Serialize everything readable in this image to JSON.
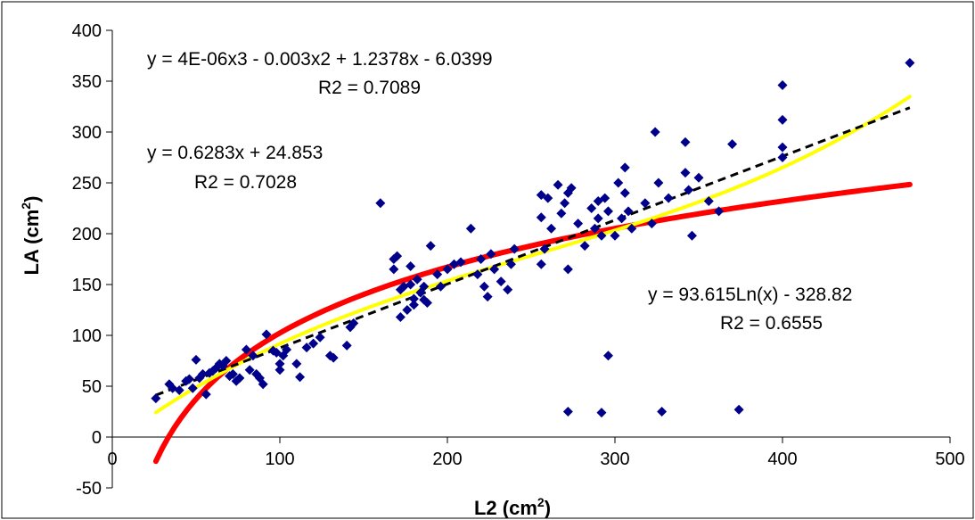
{
  "chart_data": {
    "type": "scatter",
    "xlabel_main": "L2 (cm",
    "xlabel_sup": "2",
    "xlabel_end": ")",
    "ylabel_main": "LA (cm",
    "ylabel_sup": "2",
    "ylabel_end": ")",
    "xlim": [
      0,
      500
    ],
    "ylim": [
      -50,
      400
    ],
    "xticks": [
      "0",
      "100",
      "200",
      "300",
      "400",
      "500"
    ],
    "yticks": [
      "-50",
      "0",
      "50",
      "100",
      "150",
      "200",
      "250",
      "300",
      "350",
      "400"
    ],
    "grid": false,
    "colors": {
      "points": "#00008B",
      "poly_trend": "#FFFF00",
      "linear_trend": "#000000",
      "log_trend": "#FF0000"
    },
    "series": [
      {
        "type": "scatter",
        "x": [
          26,
          34,
          36,
          40,
          44,
          46,
          48,
          50,
          52,
          54,
          56,
          58,
          60,
          62,
          64,
          66,
          68,
          70,
          72,
          74,
          76,
          80,
          82,
          84,
          86,
          88,
          90,
          92,
          96,
          98,
          100,
          100,
          102,
          104,
          110,
          112,
          116,
          120,
          124,
          130,
          132,
          140,
          142,
          144,
          160,
          168,
          168,
          170,
          172,
          172,
          174,
          176,
          178,
          178,
          180,
          180,
          182,
          184,
          186,
          186,
          188,
          190,
          194,
          196,
          200,
          204,
          208,
          214,
          218,
          220,
          222,
          224,
          226,
          228,
          232,
          236,
          238,
          240,
          256,
          256,
          256,
          258,
          260,
          262,
          266,
          268,
          270,
          272,
          272,
          274,
          278,
          282,
          286,
          288,
          290,
          290,
          292,
          294,
          296,
          300,
          302,
          304,
          306,
          306,
          308,
          310,
          318,
          322,
          324,
          326,
          332,
          342,
          342,
          344,
          346,
          350,
          356,
          362,
          370,
          400,
          400,
          400,
          400,
          476,
          272,
          292,
          296,
          328,
          374
        ],
        "y": [
          38,
          52,
          48,
          46,
          55,
          57,
          48,
          76,
          58,
          62,
          42,
          63,
          65,
          68,
          72,
          70,
          75,
          60,
          62,
          55,
          58,
          86,
          66,
          80,
          62,
          58,
          52,
          101,
          85,
          83,
          72,
          66,
          80,
          86,
          72,
          59,
          88,
          92,
          98,
          80,
          78,
          90,
          108,
          112,
          230,
          175,
          165,
          178,
          118,
          145,
          148,
          125,
          168,
          150,
          136,
          130,
          155,
          142,
          148,
          135,
          132,
          188,
          160,
          148,
          165,
          170,
          172,
          205,
          160,
          175,
          148,
          138,
          180,
          165,
          153,
          145,
          170,
          185,
          238,
          216,
          170,
          185,
          235,
          205,
          248,
          220,
          230,
          240,
          165,
          245,
          210,
          188,
          225,
          205,
          232,
          215,
          198,
          235,
          222,
          198,
          250,
          215,
          265,
          240,
          222,
          205,
          230,
          210,
          300,
          250,
          235,
          290,
          260,
          243,
          198,
          255,
          232,
          222,
          288,
          346,
          312,
          285,
          275,
          368,
          25,
          24,
          80,
          25,
          27
        ]
      },
      {
        "type": "polynomial-trendline",
        "equation": "y = 4E-06x3 - 0.003x2 + 1.2378x - 6.0399",
        "r2": "R2 = 0.7089",
        "coefficients": [
          4e-06,
          -0.003,
          1.2378,
          -6.0399
        ]
      },
      {
        "type": "linear-trendline",
        "equation": "y = 0.6283x + 24.853",
        "r2": "R2 = 0.7028",
        "slope": 0.6283,
        "intercept": 24.853
      },
      {
        "type": "log-trendline",
        "equation": "y = 93.615Ln(x) - 328.82",
        "r2": "R2 = 0.6555",
        "a": 93.615,
        "b": -328.82
      }
    ],
    "trend_x_range": [
      26,
      476
    ]
  }
}
